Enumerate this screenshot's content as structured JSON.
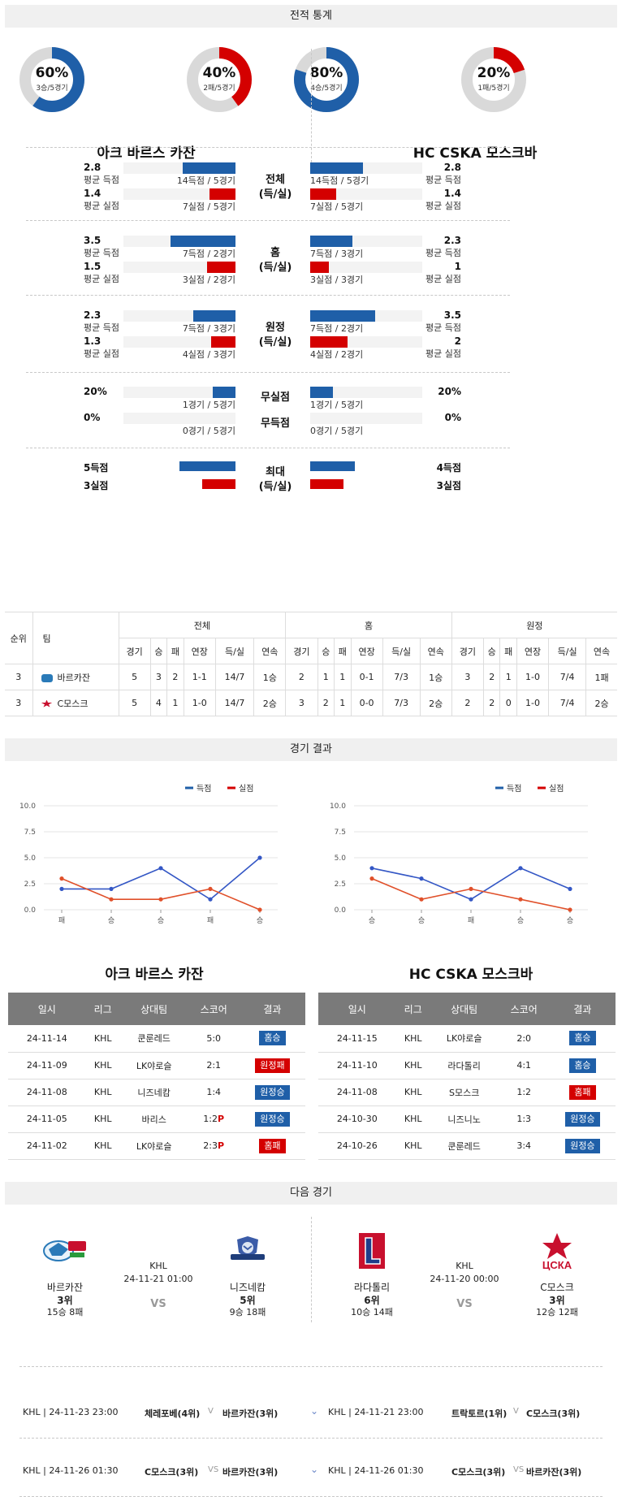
{
  "sections": {
    "stats": "전적 통계",
    "results": "경기 결과",
    "next": "다음 경기"
  },
  "team_a": {
    "name": "아크 바르스 카잔",
    "short": "바르카잔",
    "win_pct": "60%",
    "win_sub": "3승/5경기",
    "loss_pct": "40%",
    "loss_sub": "2패/5경기"
  },
  "team_b": {
    "name": "HC CSKA 모스크바",
    "short": "C모스크",
    "win_pct": "80%",
    "win_sub": "4승/5경기",
    "loss_pct": "20%",
    "loss_sub": "1패/5경기"
  },
  "donut_fractions": {
    "a_win": 0.6,
    "a_loss": 0.4,
    "b_win": 0.8,
    "b_loss": 0.2
  },
  "colors": {
    "blue": "#1f5fa8",
    "red": "#d40000",
    "grey": "#d9d9d9"
  },
  "stat_groups": [
    {
      "label1": "전체",
      "label2": "(득/실)",
      "a_top": {
        "value": "2.8",
        "label": "평균 득점",
        "bar": "14득점 / 5경기",
        "frac": 0.47
      },
      "a_bot": {
        "value": "1.4",
        "label": "평균 실점",
        "bar": "7실점 / 5경기",
        "frac": 0.23
      },
      "b_top": {
        "value": "2.8",
        "label": "평균 득점",
        "bar": "14득점 / 5경기",
        "frac": 0.47
      },
      "b_bot": {
        "value": "1.4",
        "label": "평균 실점",
        "bar": "7실점 / 5경기",
        "frac": 0.23
      }
    },
    {
      "label1": "홈",
      "label2": "(득/실)",
      "a_top": {
        "value": "3.5",
        "label": "평균 득점",
        "bar": "7득점 / 2경기",
        "frac": 0.58
      },
      "a_bot": {
        "value": "1.5",
        "label": "평균 실점",
        "bar": "3실점 / 2경기",
        "frac": 0.25
      },
      "b_top": {
        "value": "2.3",
        "label": "평균 득점",
        "bar": "7득점 / 3경기",
        "frac": 0.38
      },
      "b_bot": {
        "value": "1",
        "label": "평균 실점",
        "bar": "3실점 / 3경기",
        "frac": 0.17
      }
    },
    {
      "label1": "원정",
      "label2": "(득/실)",
      "a_top": {
        "value": "2.3",
        "label": "평균 득점",
        "bar": "7득점 / 3경기",
        "frac": 0.38
      },
      "a_bot": {
        "value": "1.3",
        "label": "평균 실점",
        "bar": "4실점 / 3경기",
        "frac": 0.22
      },
      "b_top": {
        "value": "3.5",
        "label": "평균 득점",
        "bar": "7득점 / 2경기",
        "frac": 0.58
      },
      "b_bot": {
        "value": "2",
        "label": "평균 실점",
        "bar": "4실점 / 2경기",
        "frac": 0.33
      }
    }
  ],
  "clean": [
    {
      "label": "무실점",
      "a_value": "20%",
      "a_bar": "1경기 / 5경기",
      "b_value": "20%",
      "b_bar": "1경기 / 5경기",
      "frac": 0.2
    },
    {
      "label": "무득점",
      "a_value": "0%",
      "a_bar": "0경기 / 5경기",
      "b_value": "0%",
      "b_bar": "0경기 / 5경기",
      "frac": 0
    }
  ],
  "max": {
    "label1": "최대",
    "label2": "(득/실)",
    "a_for": "5득점",
    "a_against": "3실점",
    "b_for": "4득점",
    "b_against": "3실점",
    "a_for_frac": 0.5,
    "a_against_frac": 0.3,
    "b_for_frac": 0.4,
    "b_against_frac": 0.3
  },
  "standings": {
    "groups": [
      "전체",
      "홈",
      "원정"
    ],
    "rank_label": "순위",
    "team_label": "팀",
    "cols": [
      "경기",
      "승",
      "패",
      "연장",
      "득/실",
      "연속"
    ],
    "rows": [
      {
        "rank": "3",
        "team": "바르카잔",
        "all": [
          "5",
          "3",
          "2",
          "1-1",
          "14/7",
          "1승"
        ],
        "home": [
          "2",
          "1",
          "1",
          "0-1",
          "7/3",
          "1승"
        ],
        "away": [
          "3",
          "2",
          "1",
          "1-0",
          "7/4",
          "1패"
        ]
      },
      {
        "rank": "3",
        "team": "C모스크",
        "all": [
          "5",
          "4",
          "1",
          "1-0",
          "14/7",
          "2승"
        ],
        "home": [
          "3",
          "2",
          "1",
          "0-0",
          "7/3",
          "2승"
        ],
        "away": [
          "2",
          "2",
          "0",
          "1-0",
          "7/4",
          "2승"
        ]
      }
    ]
  },
  "charts": {
    "legend_for": "득점",
    "legend_against": "실점",
    "yticks": [
      "10.0",
      "7.5",
      "5.0",
      "2.5",
      "0.0"
    ]
  },
  "chart_data": [
    {
      "type": "line",
      "categories": [
        "패",
        "승",
        "승",
        "패",
        "승"
      ],
      "ylim": [
        0,
        10
      ],
      "series": [
        {
          "name": "득점",
          "values": [
            2,
            2,
            4,
            1,
            5
          ]
        },
        {
          "name": "실점",
          "values": [
            3,
            1,
            1,
            2,
            0
          ]
        }
      ]
    },
    {
      "type": "line",
      "categories": [
        "승",
        "승",
        "패",
        "승",
        "승"
      ],
      "ylim": [
        0,
        10
      ],
      "series": [
        {
          "name": "득점",
          "values": [
            4,
            3,
            1,
            4,
            2
          ]
        },
        {
          "name": "실점",
          "values": [
            3,
            1,
            2,
            1,
            0
          ]
        }
      ]
    }
  ],
  "results_headers": [
    "일시",
    "리그",
    "상대팀",
    "스코어",
    "결과"
  ],
  "results_a": [
    {
      "date": "24-11-14",
      "league": "KHL",
      "opp": "쿤룬레드",
      "score": "5:0",
      "p": "",
      "result": "홈승",
      "type": "home"
    },
    {
      "date": "24-11-09",
      "league": "KHL",
      "opp": "LK야로슬",
      "score": "2:1",
      "p": "",
      "result": "원정패",
      "type": "loss"
    },
    {
      "date": "24-11-08",
      "league": "KHL",
      "opp": "니즈네캄",
      "score": "1:4",
      "p": "",
      "result": "원정승",
      "type": "home"
    },
    {
      "date": "24-11-05",
      "league": "KHL",
      "opp": "바리스",
      "score": "1:2",
      "p": "P",
      "result": "원정승",
      "type": "home"
    },
    {
      "date": "24-11-02",
      "league": "KHL",
      "opp": "LK야로슬",
      "score": "2:3",
      "p": "P",
      "result": "홈패",
      "type": "loss"
    }
  ],
  "results_b": [
    {
      "date": "24-11-15",
      "league": "KHL",
      "opp": "LK야로슬",
      "score": "2:0",
      "p": "",
      "result": "홈승",
      "type": "home"
    },
    {
      "date": "24-11-10",
      "league": "KHL",
      "opp": "라다톨리",
      "score": "4:1",
      "p": "",
      "result": "홈승",
      "type": "home"
    },
    {
      "date": "24-11-08",
      "league": "KHL",
      "opp": "S모스크",
      "score": "1:2",
      "p": "",
      "result": "홈패",
      "type": "loss"
    },
    {
      "date": "24-10-30",
      "league": "KHL",
      "opp": "니즈니노",
      "score": "1:3",
      "p": "",
      "result": "원정승",
      "type": "home"
    },
    {
      "date": "24-10-26",
      "league": "KHL",
      "opp": "쿤룬레드",
      "score": "3:4",
      "p": "",
      "result": "원정승",
      "type": "home"
    }
  ],
  "next_a": {
    "league": "KHL",
    "datetime": "24-11-21 01:00",
    "vs": "VS",
    "home": {
      "name": "바르카잔",
      "rank": "3위",
      "record": "15승 8패"
    },
    "away": {
      "name": "니즈네캄",
      "rank": "5위",
      "record": "9승 18패"
    }
  },
  "next_b": {
    "league": "KHL",
    "datetime": "24-11-20 00:00",
    "vs": "VS",
    "home": {
      "name": "라다톨리",
      "rank": "6위",
      "record": "10승 14패"
    },
    "away": {
      "name": "C모스크",
      "rank": "3위",
      "record": "12승 12패"
    }
  },
  "upcoming": [
    {
      "left_info": "KHL | 24-11-23 23:00",
      "left_home": "체레포베(4위)",
      "left_vs": "V",
      "left_away": "바르카잔(3위)",
      "right_info": "KHL | 24-11-21 23:00",
      "right_home": "트락토르(1위)",
      "right_vs": "V",
      "right_away": "C모스크(3위)"
    },
    {
      "left_info": "KHL | 24-11-26 01:30",
      "left_home": "C모스크(3위)",
      "left_vs": "VS",
      "left_away": "바르카잔(3위)",
      "right_info": "KHL | 24-11-26 01:30",
      "right_home": "C모스크(3위)",
      "right_vs": "VS",
      "right_away": "바르카잔(3위)"
    }
  ]
}
